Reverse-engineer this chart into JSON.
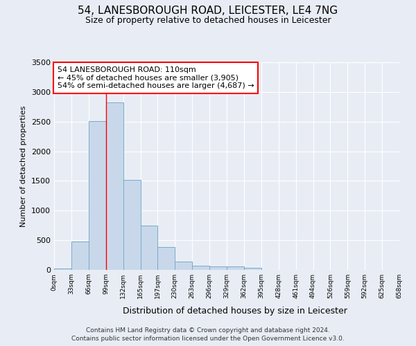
{
  "title_line1": "54, LANESBOROUGH ROAD, LEICESTER, LE4 7NG",
  "title_line2": "Size of property relative to detached houses in Leicester",
  "xlabel": "Distribution of detached houses by size in Leicester",
  "ylabel": "Number of detached properties",
  "bar_values": [
    25,
    480,
    2510,
    2820,
    1520,
    750,
    390,
    145,
    75,
    55,
    55,
    30,
    5,
    0,
    0,
    0,
    0,
    0,
    0,
    0
  ],
  "bar_color": "#c8d8ea",
  "bar_edge_color": "#7aaac8",
  "x_labels": [
    "0sqm",
    "33sqm",
    "66sqm",
    "99sqm",
    "132sqm",
    "165sqm",
    "197sqm",
    "230sqm",
    "263sqm",
    "296sqm",
    "329sqm",
    "362sqm",
    "395sqm",
    "428sqm",
    "461sqm",
    "494sqm",
    "526sqm",
    "559sqm",
    "592sqm",
    "625sqm",
    "658sqm"
  ],
  "ylim": [
    0,
    3500
  ],
  "yticks": [
    0,
    500,
    1000,
    1500,
    2000,
    2500,
    3000,
    3500
  ],
  "property_line_x": 3,
  "annotation_text": "54 LANESBOROUGH ROAD: 110sqm\n← 45% of detached houses are smaller (3,905)\n54% of semi-detached houses are larger (4,687) →",
  "annotation_box_color": "white",
  "annotation_box_edge_color": "red",
  "footer_line1": "Contains HM Land Registry data © Crown copyright and database right 2024.",
  "footer_line2": "Contains public sector information licensed under the Open Government Licence v3.0.",
  "background_color": "#e8edf5",
  "plot_bg_color": "#e8edf5"
}
